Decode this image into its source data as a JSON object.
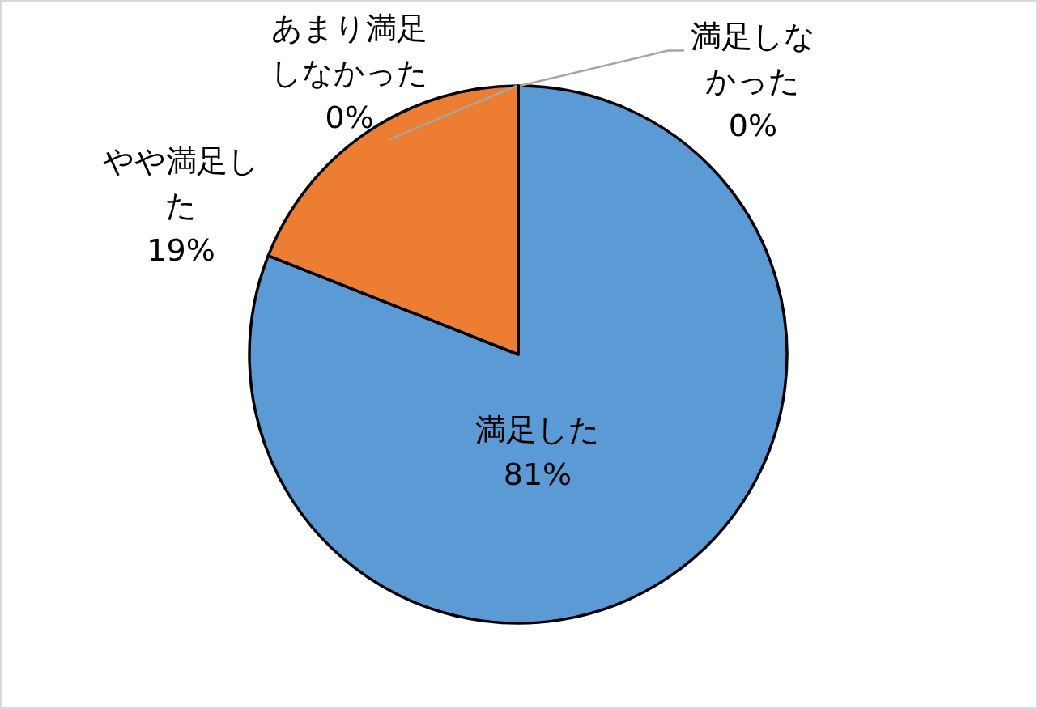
{
  "chart_data": {
    "type": "pie",
    "categories": [
      "満足した",
      "やや満足した",
      "あまり満足しなかった",
      "満足しなかった"
    ],
    "values": [
      81,
      19,
      0,
      0
    ],
    "colors": [
      "#5b9bd5",
      "#ed7d31",
      null,
      null
    ],
    "value_labels": [
      "81%",
      "19%",
      "0%",
      "0%"
    ]
  }
}
